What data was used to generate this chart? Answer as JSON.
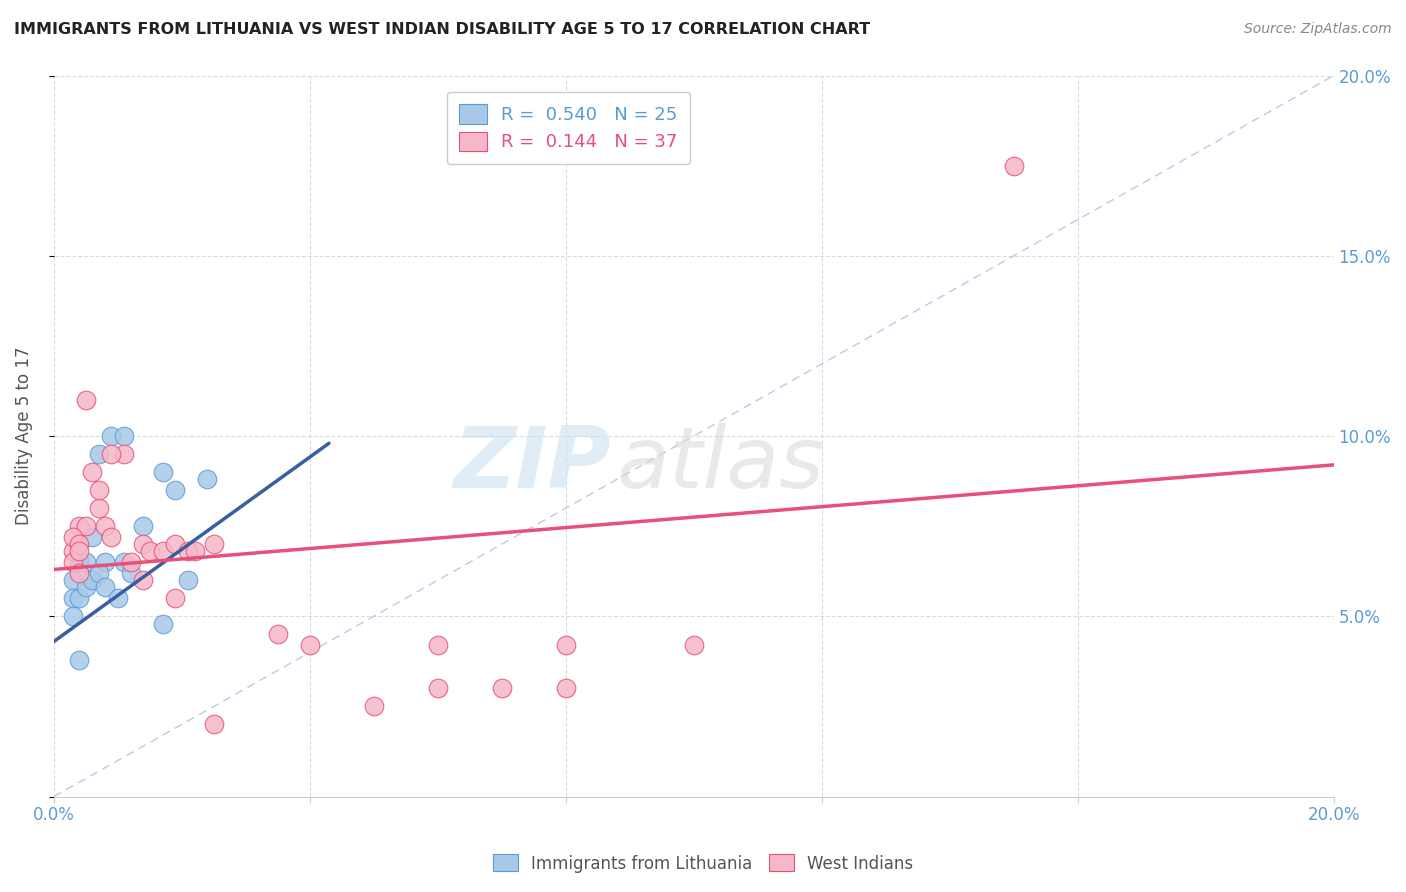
{
  "title": "IMMIGRANTS FROM LITHUANIA VS WEST INDIAN DISABILITY AGE 5 TO 17 CORRELATION CHART",
  "source": "Source: ZipAtlas.com",
  "ylabel": "Disability Age 5 to 17",
  "xlim": [
    0.0,
    0.2
  ],
  "ylim": [
    0.0,
    0.2
  ],
  "legend_entries": [
    {
      "label": "R =  0.540   N = 25",
      "color": "#5b9bd5"
    },
    {
      "label": "R =  0.144   N = 37",
      "color": "#e8507a"
    }
  ],
  "watermark_zip": "ZIP",
  "watermark_atlas": "atlas",
  "background_color": "#ffffff",
  "grid_color": "#cccccc",
  "axis_color": "#5b9bd5",
  "diag_line_color": "#aec7e8",
  "blue_line_color": "#3a5fa0",
  "pink_line_color": "#e8507a",
  "lithuania_color": "#a8c8e8",
  "lithuania_edge": "#5b9bd5",
  "west_indian_color": "#f5b8c8",
  "west_indian_edge": "#e8507a",
  "lithuania_points": [
    [
      0.003,
      0.06
    ],
    [
      0.007,
      0.095
    ],
    [
      0.009,
      0.1
    ],
    [
      0.011,
      0.1
    ],
    [
      0.014,
      0.075
    ],
    [
      0.017,
      0.09
    ],
    [
      0.019,
      0.085
    ],
    [
      0.021,
      0.06
    ],
    [
      0.024,
      0.088
    ],
    [
      0.004,
      0.065
    ],
    [
      0.005,
      0.065
    ],
    [
      0.006,
      0.072
    ],
    [
      0.008,
      0.065
    ],
    [
      0.011,
      0.065
    ],
    [
      0.012,
      0.062
    ],
    [
      0.017,
      0.048
    ],
    [
      0.003,
      0.055
    ],
    [
      0.004,
      0.055
    ],
    [
      0.005,
      0.058
    ],
    [
      0.006,
      0.06
    ],
    [
      0.007,
      0.062
    ],
    [
      0.008,
      0.058
    ],
    [
      0.01,
      0.055
    ],
    [
      0.003,
      0.05
    ],
    [
      0.004,
      0.038
    ]
  ],
  "west_indian_points": [
    [
      0.004,
      0.075
    ],
    [
      0.005,
      0.075
    ],
    [
      0.006,
      0.09
    ],
    [
      0.007,
      0.08
    ],
    [
      0.008,
      0.075
    ],
    [
      0.009,
      0.072
    ],
    [
      0.011,
      0.095
    ],
    [
      0.012,
      0.065
    ],
    [
      0.014,
      0.07
    ],
    [
      0.015,
      0.068
    ],
    [
      0.017,
      0.068
    ],
    [
      0.019,
      0.07
    ],
    [
      0.021,
      0.068
    ],
    [
      0.005,
      0.11
    ],
    [
      0.007,
      0.085
    ],
    [
      0.009,
      0.095
    ],
    [
      0.014,
      0.06
    ],
    [
      0.019,
      0.055
    ],
    [
      0.003,
      0.068
    ],
    [
      0.003,
      0.072
    ],
    [
      0.003,
      0.065
    ],
    [
      0.004,
      0.07
    ],
    [
      0.004,
      0.068
    ],
    [
      0.004,
      0.062
    ],
    [
      0.022,
      0.068
    ],
    [
      0.025,
      0.07
    ],
    [
      0.035,
      0.045
    ],
    [
      0.04,
      0.042
    ],
    [
      0.06,
      0.042
    ],
    [
      0.08,
      0.042
    ],
    [
      0.025,
      0.02
    ],
    [
      0.15,
      0.175
    ],
    [
      0.06,
      0.03
    ],
    [
      0.08,
      0.03
    ],
    [
      0.05,
      0.025
    ],
    [
      0.07,
      0.03
    ],
    [
      0.1,
      0.042
    ]
  ],
  "blue_trend_x": [
    0.0,
    0.043
  ],
  "blue_trend_y": [
    0.043,
    0.098
  ],
  "pink_trend_x": [
    0.0,
    0.2
  ],
  "pink_trend_y": [
    0.063,
    0.092
  ]
}
